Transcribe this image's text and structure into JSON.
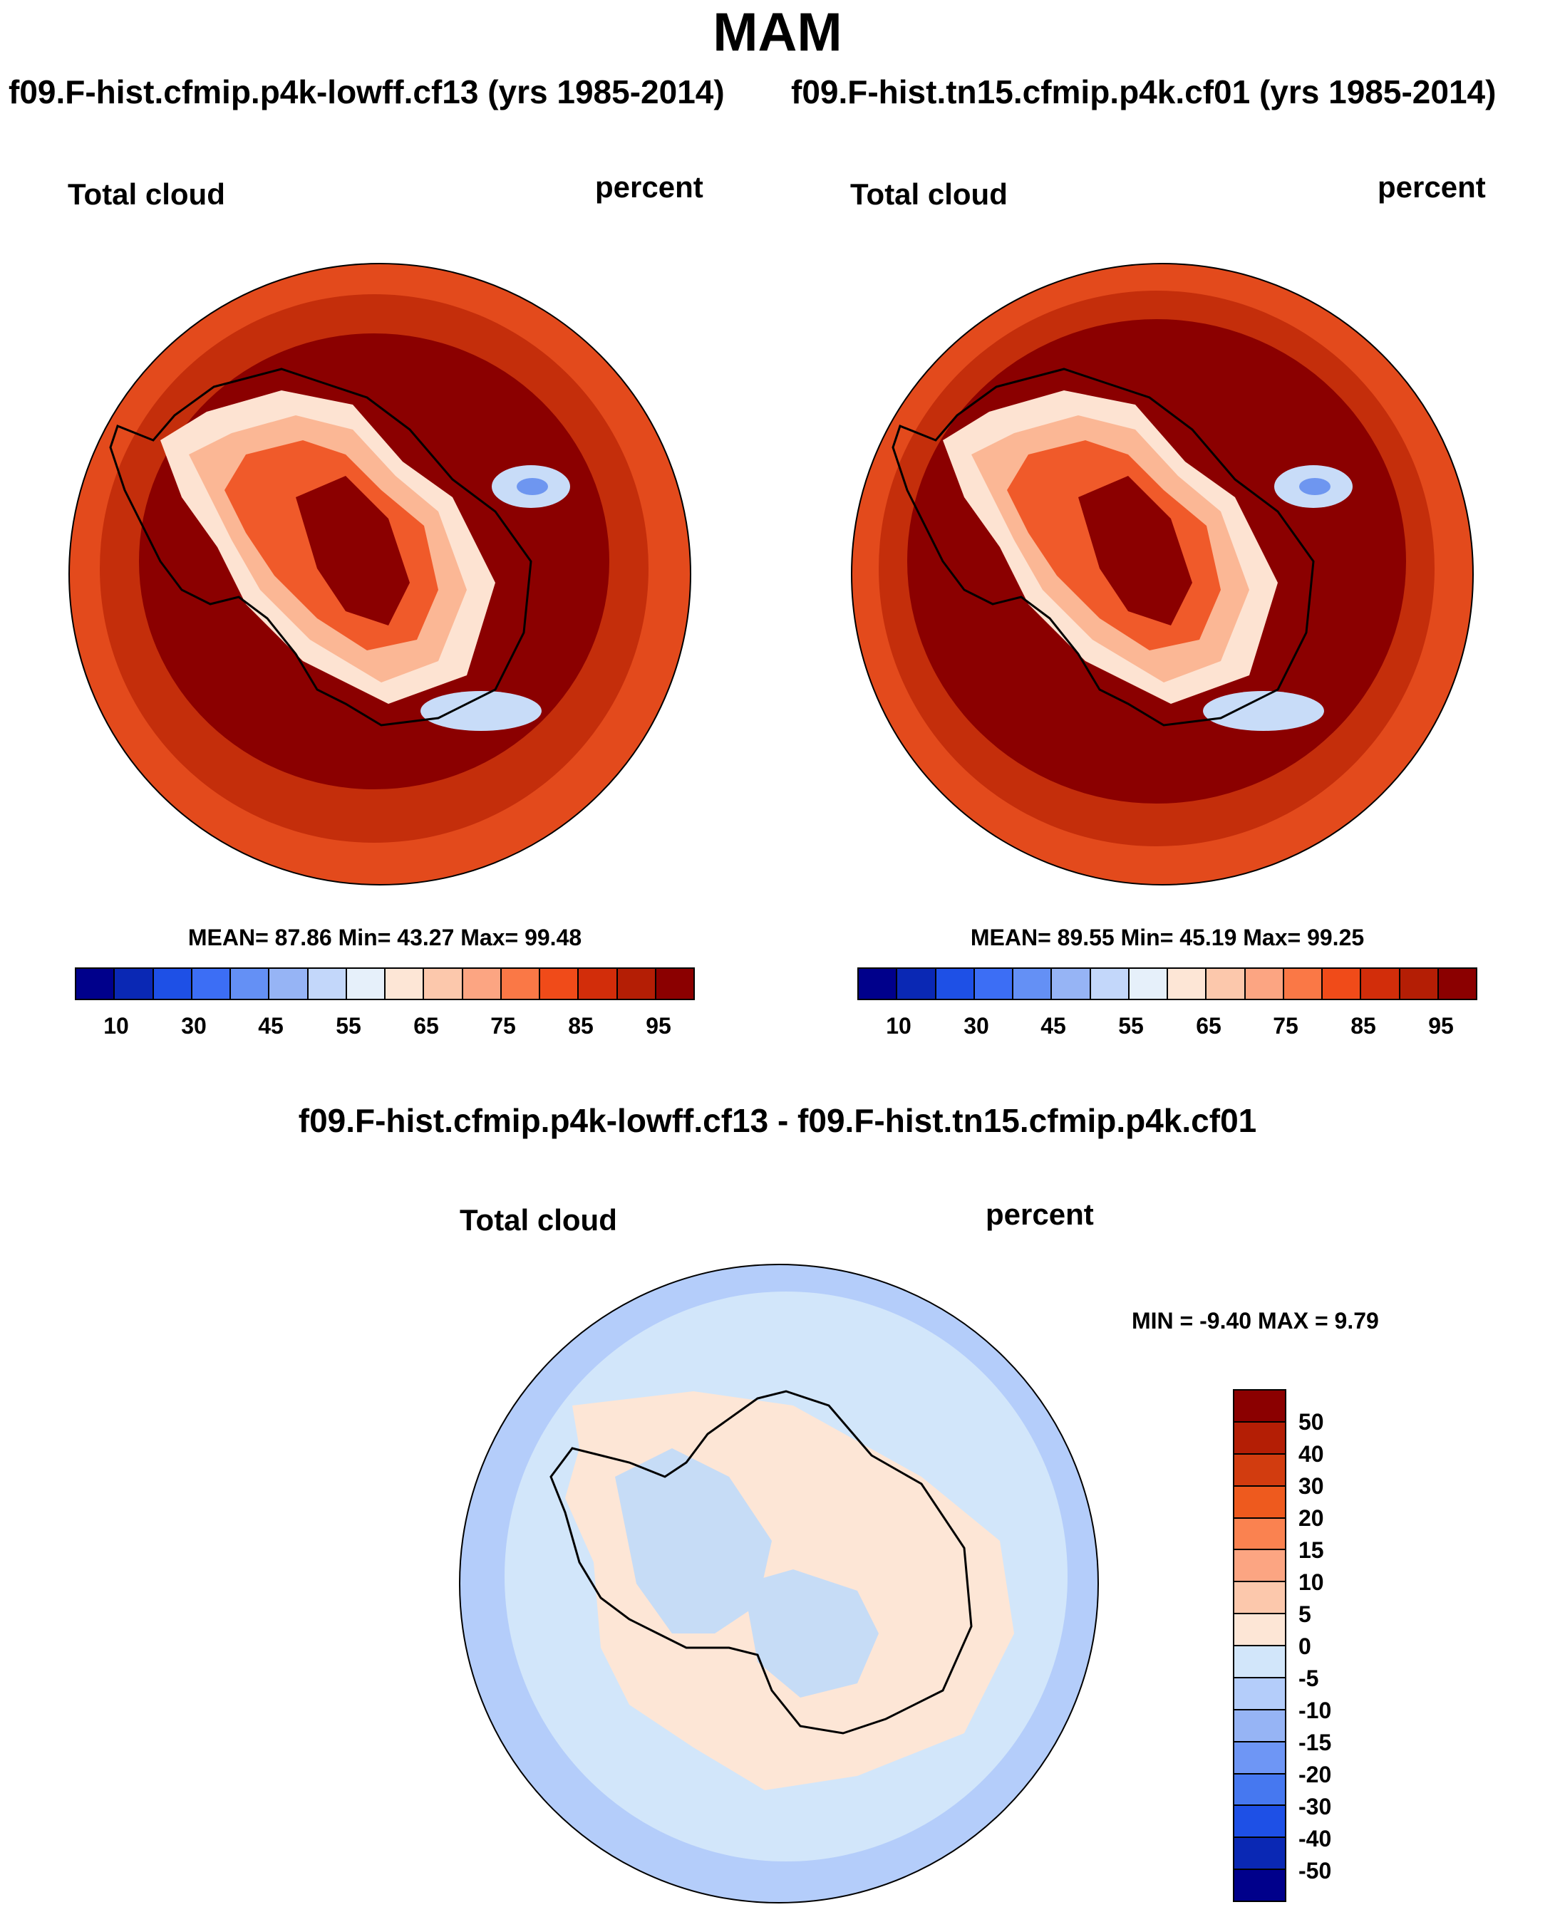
{
  "title": "MAM",
  "runs": {
    "left": "f09.F-hist.cfmip.p4k-lowff.cf13 (yrs 1985-2014)",
    "right": "f09.F-hist.tn15.cfmip.p4k.cf01 (yrs 1985-2014)"
  },
  "panels": {
    "left": {
      "variable": "Total cloud",
      "units": "percent",
      "stats": "MEAN=  87.86  Min=  43.27  Max=  99.48"
    },
    "right": {
      "variable": "Total cloud",
      "units": "percent",
      "stats": "MEAN=  89.55  Min=  45.19  Max=  99.25"
    },
    "diff": {
      "title": "f09.F-hist.cfmip.p4k-lowff.cf13 - f09.F-hist.tn15.cfmip.p4k.cf01",
      "variable": "Total cloud",
      "units": "percent",
      "stats": "MIN =  -9.40 MAX =   9.79"
    }
  },
  "colorbar_abs": {
    "colors": [
      "#00008b",
      "#0a28b4",
      "#1e50e6",
      "#3c6ef5",
      "#6490f5",
      "#96b4f5",
      "#c3d7fa",
      "#e6f0fa",
      "#fde6d6",
      "#fcc8ac",
      "#fca582",
      "#fa7846",
      "#f04b19",
      "#d22d0a",
      "#b41e05",
      "#8b0000"
    ],
    "ticks": [
      "10",
      "30",
      "45",
      "55",
      "65",
      "75",
      "85",
      "95"
    ]
  },
  "colorbar_diff": {
    "colors": [
      "#8b0000",
      "#b41e05",
      "#d23c0f",
      "#ee5a1e",
      "#fa8250",
      "#fca582",
      "#fcc8ac",
      "#fde6d6",
      "#d2e6fa",
      "#b4cdfa",
      "#96b4f5",
      "#6e96f5",
      "#4678f0",
      "#1e50e6",
      "#0a28b4",
      "#00008b"
    ],
    "ticks": [
      "50",
      "40",
      "30",
      "20",
      "15",
      "10",
      "5",
      "0",
      "-5",
      "-10",
      "-15",
      "-20",
      "-30",
      "-40",
      "-50"
    ]
  },
  "map_colors": {
    "outer": "#e34a1c",
    "ring": "#c42e0b",
    "deep": "#8b0000",
    "c1": "#f05a2a",
    "c2": "#f8895a",
    "c3": "#fbb795",
    "c4": "#fde3d2",
    "c5": "#c8dcf8",
    "c6": "#6e96f0",
    "d_edge": "#b4cdfa",
    "d_sea": "#d2e6fa",
    "d_land": "#fde6d6",
    "d_blue": "#c6dcf6"
  }
}
